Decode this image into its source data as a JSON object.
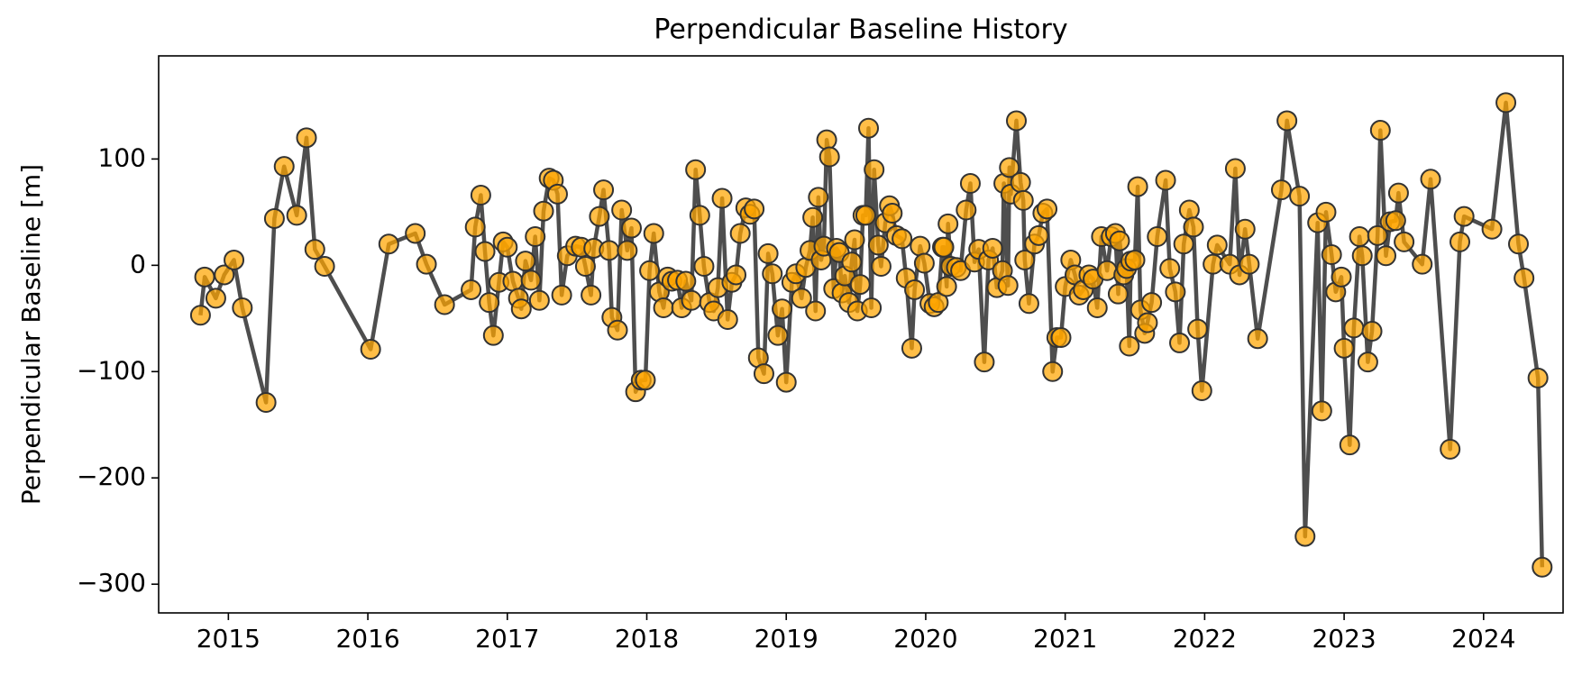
{
  "chart_data": {
    "type": "line",
    "title": "Perpendicular Baseline History",
    "ylabel": "Perpendicular Baseline [m]",
    "line_color": "#444444",
    "marker_color": "#ffa500",
    "marker_edge_color": "#333333",
    "x": [
      2014.8,
      2014.83,
      2014.91,
      2014.97,
      2015.04,
      2015.1,
      2015.27,
      2015.33,
      2015.4,
      2015.49,
      2015.56,
      2015.62,
      2015.69,
      2016.02,
      2016.15,
      2016.34,
      2016.42,
      2016.55,
      2016.74,
      2016.77,
      2016.81,
      2016.84,
      2016.87,
      2016.9,
      2016.94,
      2016.97,
      2017.0,
      2017.04,
      2017.08,
      2017.1,
      2017.13,
      2017.17,
      2017.2,
      2017.23,
      2017.26,
      2017.3,
      2017.33,
      2017.36,
      2017.39,
      2017.43,
      2017.49,
      2017.53,
      2017.56,
      2017.6,
      2017.62,
      2017.66,
      2017.69,
      2017.73,
      2017.75,
      2017.79,
      2017.82,
      2017.86,
      2017.89,
      2017.92,
      2017.96,
      2017.99,
      2018.02,
      2018.05,
      2018.09,
      2018.12,
      2018.15,
      2018.18,
      2018.22,
      2018.25,
      2018.28,
      2018.32,
      2018.35,
      2018.38,
      2018.41,
      2018.45,
      2018.48,
      2018.51,
      2018.54,
      2018.58,
      2018.61,
      2018.64,
      2018.67,
      2018.71,
      2018.74,
      2018.77,
      2018.8,
      2018.84,
      2018.87,
      2018.9,
      2018.94,
      2018.97,
      2019.0,
      2019.04,
      2019.07,
      2019.11,
      2019.14,
      2019.17,
      2019.19,
      2019.21,
      2019.23,
      2019.25,
      2019.27,
      2019.29,
      2019.31,
      2019.34,
      2019.36,
      2019.38,
      2019.4,
      2019.42,
      2019.45,
      2019.47,
      2019.49,
      2019.51,
      2019.53,
      2019.55,
      2019.57,
      2019.59,
      2019.61,
      2019.63,
      2019.66,
      2019.68,
      2019.71,
      2019.74,
      2019.76,
      2019.79,
      2019.83,
      2019.86,
      2019.9,
      2019.92,
      2019.96,
      2019.99,
      2020.03,
      2020.06,
      2020.09,
      2020.12,
      2020.13,
      2020.15,
      2020.16,
      2020.18,
      2020.22,
      2020.25,
      2020.29,
      2020.32,
      2020.35,
      2020.38,
      2020.42,
      2020.45,
      2020.48,
      2020.51,
      2020.55,
      2020.56,
      2020.59,
      2020.6,
      2020.61,
      2020.65,
      2020.68,
      2020.7,
      2020.71,
      2020.74,
      2020.78,
      2020.81,
      2020.84,
      2020.87,
      2020.91,
      2020.94,
      2020.97,
      2021.0,
      2021.04,
      2021.07,
      2021.1,
      2021.13,
      2021.17,
      2021.2,
      2021.23,
      2021.26,
      2021.3,
      2021.33,
      2021.36,
      2021.38,
      2021.39,
      2021.42,
      2021.44,
      2021.46,
      2021.47,
      2021.5,
      2021.52,
      2021.54,
      2021.57,
      2021.59,
      2021.62,
      2021.66,
      2021.72,
      2021.75,
      2021.79,
      2021.82,
      2021.85,
      2021.89,
      2021.92,
      2021.95,
      2021.98,
      2022.06,
      2022.09,
      2022.18,
      2022.22,
      2022.25,
      2022.29,
      2022.32,
      2022.38,
      2022.55,
      2022.59,
      2022.68,
      2022.72,
      2022.81,
      2022.84,
      2022.87,
      2022.91,
      2022.94,
      2022.98,
      2023.0,
      2023.04,
      2023.07,
      2023.11,
      2023.13,
      2023.17,
      2023.2,
      2023.24,
      2023.26,
      2023.3,
      2023.33,
      2023.37,
      2023.39,
      2023.43,
      2023.56,
      2023.62,
      2023.76,
      2023.83,
      2023.86,
      2024.06,
      2024.16,
      2024.25,
      2024.29,
      2024.39,
      2024.42
    ],
    "values": [
      -47,
      -11,
      -31,
      -9,
      5,
      -40,
      -129,
      44,
      93,
      47,
      120,
      15,
      -1,
      -79,
      20,
      30,
      1,
      -37,
      -23,
      36,
      66,
      13,
      -35,
      -66,
      -16,
      22,
      17,
      -15,
      -31,
      -41,
      4,
      -14,
      27,
      -33,
      51,
      82,
      80,
      67,
      -28,
      9,
      18,
      17,
      -1,
      -28,
      16,
      46,
      71,
      14,
      -49,
      -61,
      52,
      14,
      35,
      -119,
      -108,
      -108,
      -5,
      30,
      -25,
      -40,
      -11,
      -15,
      -14,
      -40,
      -15,
      -33,
      90,
      47,
      -1,
      -35,
      -43,
      -21,
      63,
      -51,
      -16,
      -9,
      30,
      54,
      48,
      53,
      -87,
      -102,
      11,
      -8,
      -66,
      -41,
      -110,
      -16,
      -8,
      -31,
      -2,
      14,
      45,
      -43,
      64,
      5,
      18,
      118,
      102,
      -22,
      16,
      12,
      -26,
      -10,
      -35,
      3,
      24,
      -43,
      -18,
      47,
      47,
      129,
      -40,
      90,
      19,
      -1,
      40,
      56,
      49,
      28,
      25,
      -12,
      -78,
      -23,
      18,
      2,
      -36,
      -39,
      -35,
      17,
      17,
      -20,
      39,
      -1,
      -2,
      -5,
      52,
      77,
      3,
      15,
      -91,
      5,
      16,
      -21,
      -5,
      77,
      -19,
      92,
      67,
      136,
      78,
      61,
      5,
      -36,
      20,
      28,
      49,
      53,
      -100,
      -68,
      -68,
      -20,
      5,
      -9,
      -28,
      -23,
      -9,
      -13,
      -40,
      27,
      -5,
      27,
      30,
      -27,
      23,
      -9,
      -3,
      -76,
      4,
      5,
      74,
      -42,
      -64,
      -54,
      -35,
      27,
      80,
      -3,
      -25,
      -73,
      20,
      52,
      36,
      -60,
      -118,
      1,
      19,
      1,
      91,
      -9,
      34,
      1,
      -69,
      71,
      136,
      65,
      -255,
      40,
      -137,
      50,
      10,
      -25,
      -11,
      -78,
      -169,
      -59,
      27,
      9,
      -91,
      -62,
      28,
      127,
      9,
      41,
      42,
      68,
      22,
      1,
      81,
      -173,
      22,
      46,
      34,
      153,
      20,
      -12,
      -106,
      -284
    ],
    "xlim": [
      2014.5,
      2024.57
    ],
    "xticks": [
      2015,
      2016,
      2017,
      2018,
      2019,
      2020,
      2021,
      2022,
      2023,
      2024
    ],
    "ylim": [
      -327,
      197
    ],
    "yticks": [
      {
        "value": -300,
        "label": "−300"
      },
      {
        "value": -200,
        "label": "−200"
      },
      {
        "value": -100,
        "label": "−100"
      },
      0,
      100
    ],
    "grid": false
  }
}
